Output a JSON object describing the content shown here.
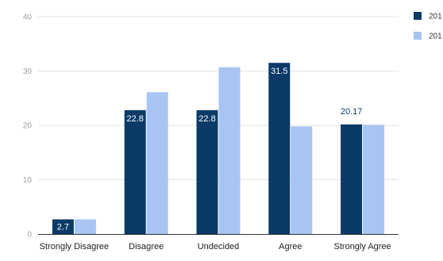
{
  "chart_data": {
    "type": "bar",
    "categories": [
      "Strongly Disagree",
      "Disagree",
      "Undecided",
      "Agree",
      "Strongly Agree"
    ],
    "series": [
      {
        "name": "201",
        "color": "#0b3a66",
        "values": [
          2.7,
          22.8,
          22.8,
          31.5,
          20.17
        ],
        "data_labels": [
          "2.7",
          "22.8",
          "22.8",
          "31.5",
          "20.17"
        ]
      },
      {
        "name": "201",
        "color": "#a8c4f2",
        "values": [
          2.7,
          26.1,
          30.7,
          19.8,
          20.1
        ],
        "data_labels": []
      }
    ],
    "yticks": [
      0,
      10,
      20,
      30,
      40
    ],
    "ylim": [
      0,
      40
    ],
    "grid": true,
    "legend": "top-right",
    "title": "",
    "xlabel": "",
    "ylabel": ""
  }
}
